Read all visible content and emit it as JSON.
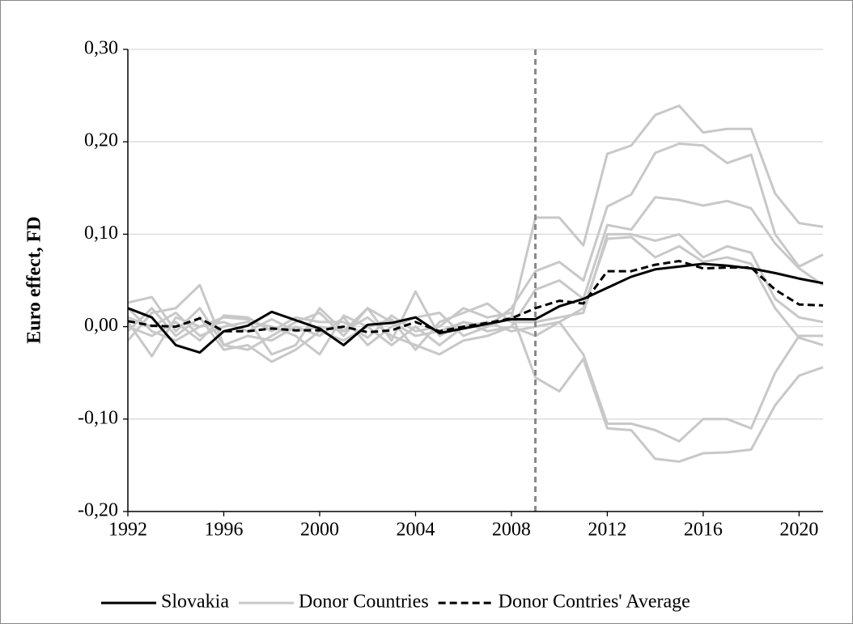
{
  "chart_data": {
    "type": "line",
    "y_label": "Euro effect, FD",
    "x": [
      1992,
      1993,
      1994,
      1995,
      1996,
      1997,
      1998,
      1999,
      2000,
      2001,
      2002,
      2003,
      2004,
      2005,
      2006,
      2007,
      2008,
      2009,
      2010,
      2011,
      2012,
      2013,
      2014,
      2015,
      2016,
      2017,
      2018,
      2019,
      2020,
      2021
    ],
    "xlim": [
      1992,
      2021
    ],
    "xticks": [
      1992,
      1996,
      2000,
      2004,
      2008,
      2012,
      2016,
      2020
    ],
    "ylim": [
      -0.2,
      0.3
    ],
    "yticks": [
      {
        "value": -0.2,
        "label": "-0,20"
      },
      {
        "value": -0.1,
        "label": "-0,10"
      },
      {
        "value": 0,
        "label": "0,00"
      },
      {
        "value": 0.1,
        "label": "0,10"
      },
      {
        "value": 0.2,
        "label": "0,20"
      },
      {
        "value": 0.3,
        "label": "0,30"
      }
    ],
    "grid": true,
    "vline": 2009,
    "legend": "bottom",
    "series": [
      {
        "name": "Slovakia",
        "color": "#000000",
        "dash": false,
        "values": [
          0.02,
          0.01,
          -0.02,
          -0.028,
          -0.005,
          0.001,
          0.016,
          0.007,
          -0.002,
          -0.02,
          0.002,
          0.004,
          0.01,
          -0.007,
          -0.002,
          0.003,
          0.008,
          0.008,
          0.022,
          0.03,
          0.042,
          0.054,
          0.062,
          0.065,
          0.068,
          0.066,
          0.063,
          0.058,
          0.052,
          0.047
        ]
      },
      {
        "name": "Donor Countries",
        "color": "#c8c8c8",
        "dash": false,
        "lines": [
          [
            0.026,
            0.032,
            -0.005,
            0.02,
            -0.02,
            -0.025,
            -0.01,
            0.005,
            0.015,
            -0.01,
            0.02,
            -0.015,
            0.038,
            -0.01,
            0.005,
            0.0,
            0.01,
            0.118,
            0.118,
            0.088,
            0.187,
            0.196,
            0.229,
            0.239,
            0.21,
            0.214,
            0.214,
            0.144,
            0.112,
            0.108
          ],
          [
            -0.015,
            0.015,
            0.02,
            0.045,
            -0.02,
            -0.01,
            -0.015,
            0.0,
            -0.01,
            0.01,
            -0.02,
            0.0,
            0.01,
            0.015,
            -0.01,
            0.0,
            0.02,
            0.06,
            0.07,
            0.05,
            0.13,
            0.143,
            0.188,
            0.198,
            0.196,
            0.177,
            0.186,
            0.1,
            0.065,
            0.078
          ],
          [
            0.005,
            -0.032,
            0.01,
            0.0,
            0.01,
            0.008,
            -0.03,
            -0.02,
            0.02,
            -0.005,
            0.01,
            -0.01,
            -0.02,
            -0.03,
            -0.015,
            -0.01,
            0.0,
            0.04,
            0.05,
            0.03,
            0.11,
            0.105,
            0.14,
            0.137,
            0.131,
            0.136,
            0.128,
            0.09,
            0.063,
            0.045
          ],
          [
            0.01,
            0.0,
            0.015,
            -0.01,
            0.0,
            0.005,
            0.0,
            -0.01,
            -0.03,
            0.012,
            0.0,
            0.008,
            -0.025,
            0.005,
            0.015,
            0.025,
            0.005,
            0.005,
            0.01,
            0.015,
            0.1,
            0.1,
            0.093,
            0.1,
            0.075,
            0.087,
            0.08,
            0.03,
            0.01,
            0.005
          ],
          [
            -0.005,
            0.02,
            -0.01,
            0.01,
            -0.025,
            -0.02,
            -0.038,
            -0.025,
            -0.005,
            -0.015,
            0.0,
            -0.02,
            0.0,
            -0.02,
            0.0,
            0.005,
            -0.005,
            0.0,
            0.005,
            0.02,
            0.095,
            0.097,
            0.075,
            0.087,
            0.07,
            0.075,
            0.068,
            0.02,
            -0.012,
            -0.02
          ],
          [
            0.0,
            -0.01,
            0.005,
            -0.015,
            0.012,
            0.01,
            -0.005,
            0.01,
            0.005,
            0.005,
            -0.012,
            0.012,
            -0.005,
            0.0,
            0.02,
            0.01,
            0.015,
            -0.055,
            -0.07,
            -0.035,
            -0.11,
            -0.112,
            -0.143,
            -0.146,
            -0.137,
            -0.136,
            -0.133,
            -0.085,
            -0.053,
            -0.044
          ],
          [
            0.02,
            -0.005,
            -0.015,
            0.0,
            0.005,
            -0.005,
            0.008,
            -0.005,
            0.0,
            -0.005,
            0.02,
            0.005,
            -0.01,
            -0.005,
            0.005,
            -0.005,
            0.0,
            -0.01,
            0.005,
            -0.03,
            -0.105,
            -0.105,
            -0.112,
            -0.124,
            -0.1,
            -0.1,
            -0.11,
            -0.05,
            -0.01,
            -0.01
          ]
        ]
      },
      {
        "name": "Donor Contries' Average",
        "color": "#000000",
        "dash": true,
        "values": [
          0.006,
          0.001,
          0.0,
          0.009,
          -0.005,
          -0.005,
          -0.002,
          -0.004,
          -0.004,
          0.0,
          -0.006,
          -0.004,
          0.005,
          -0.005,
          0.0,
          0.004,
          0.009,
          0.02,
          0.028,
          0.025,
          0.06,
          0.06,
          0.067,
          0.071,
          0.063,
          0.064,
          0.064,
          0.04,
          0.024,
          0.023
        ]
      }
    ]
  }
}
